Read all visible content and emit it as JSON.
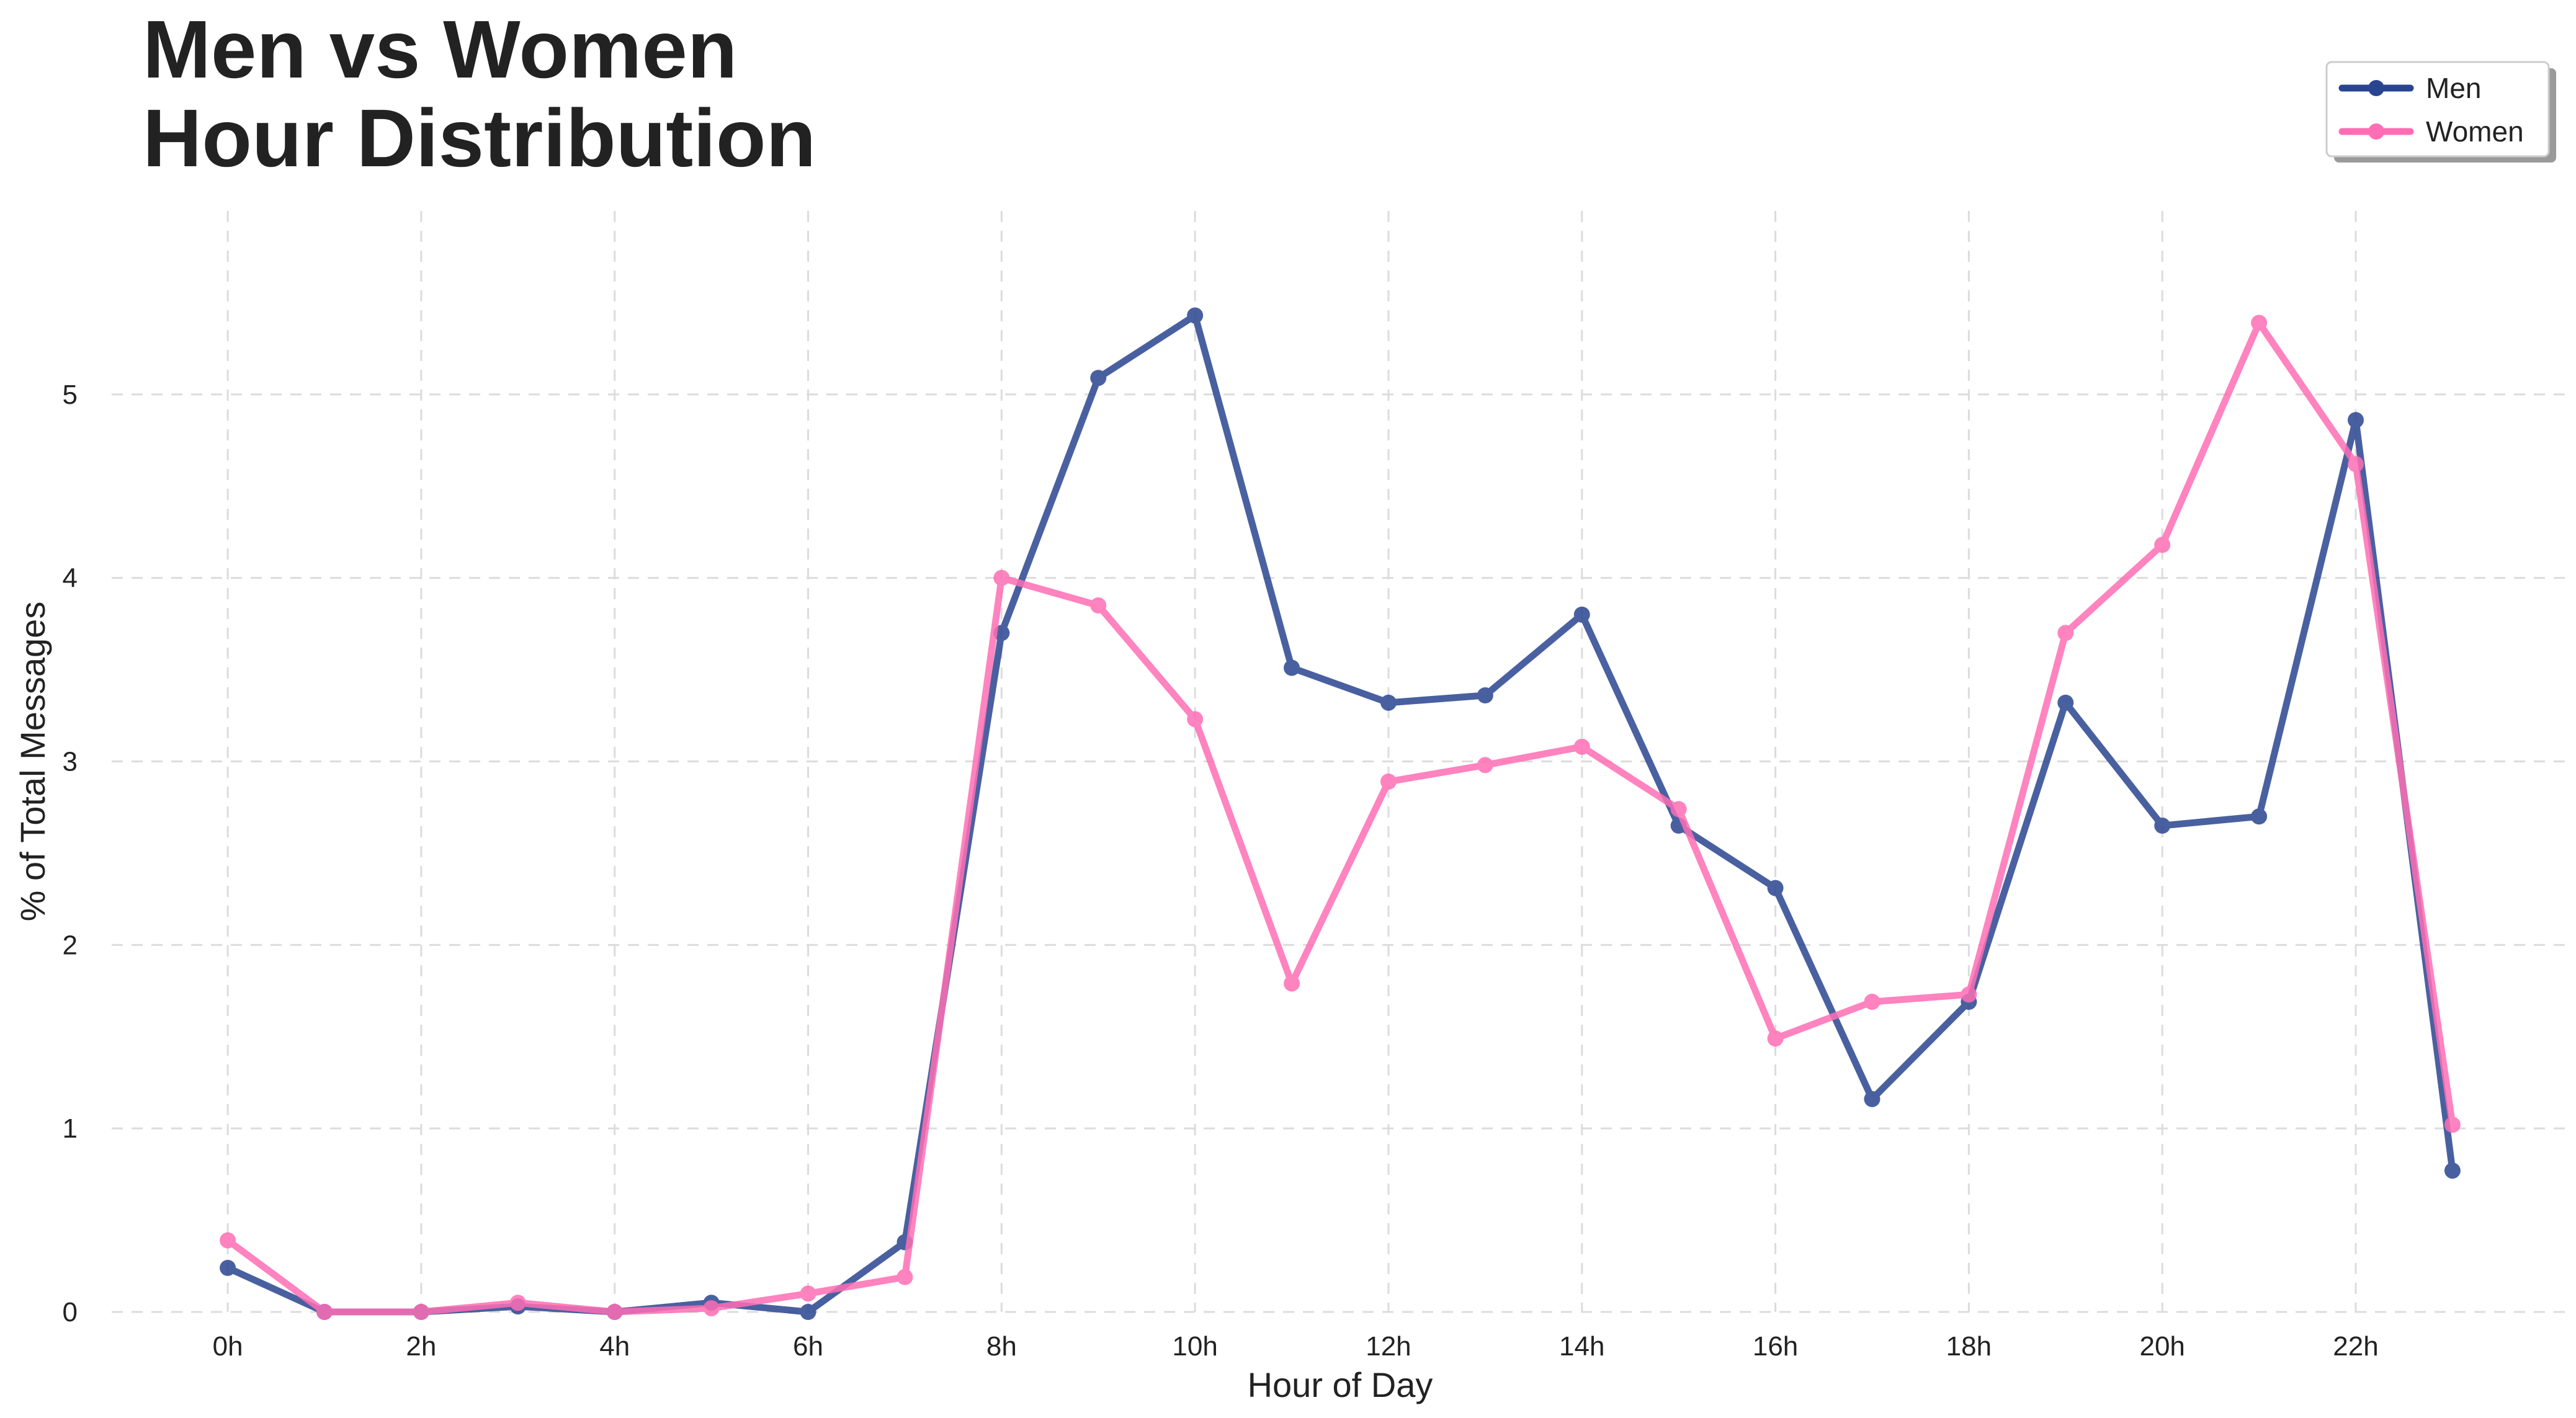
{
  "chart_data": {
    "type": "line",
    "title_lines": [
      "Men vs Women",
      "Hour Distribution"
    ],
    "xlabel": "Hour of Day",
    "ylabel": "% of Total Messages",
    "x": [
      0,
      1,
      2,
      3,
      4,
      5,
      6,
      7,
      8,
      9,
      10,
      11,
      12,
      13,
      14,
      15,
      16,
      17,
      18,
      19,
      20,
      21,
      22,
      23
    ],
    "x_ticks": [
      0,
      2,
      4,
      6,
      8,
      10,
      12,
      14,
      16,
      18,
      20,
      22
    ],
    "x_tick_labels": [
      "0h",
      "2h",
      "4h",
      "6h",
      "8h",
      "10h",
      "12h",
      "14h",
      "16h",
      "18h",
      "20h",
      "22h"
    ],
    "xlim": [
      -1.2,
      24.2
    ],
    "y_ticks": [
      0,
      1,
      2,
      3,
      4,
      5
    ],
    "y_tick_labels": [
      "0",
      "1",
      "2",
      "3",
      "4",
      "5"
    ],
    "ylim": [
      0,
      6
    ],
    "grid": true,
    "legend_position": "top-right",
    "series": [
      {
        "name": "Men",
        "color": "#2a4590",
        "values": [
          0.24,
          0.0,
          0.0,
          0.03,
          0.0,
          0.05,
          0.0,
          0.38,
          3.7,
          5.09,
          5.43,
          3.51,
          3.32,
          3.36,
          3.8,
          2.65,
          2.31,
          1.16,
          1.69,
          3.32,
          2.65,
          2.7,
          4.86,
          0.77
        ]
      },
      {
        "name": "Women",
        "color": "#ff6eb4",
        "values": [
          0.39,
          0.0,
          0.0,
          0.05,
          0.0,
          0.02,
          0.1,
          0.19,
          4.0,
          3.85,
          3.23,
          1.79,
          2.89,
          2.98,
          3.08,
          2.74,
          1.49,
          1.69,
          1.73,
          3.7,
          4.18,
          5.39,
          4.62,
          1.02
        ]
      }
    ]
  }
}
